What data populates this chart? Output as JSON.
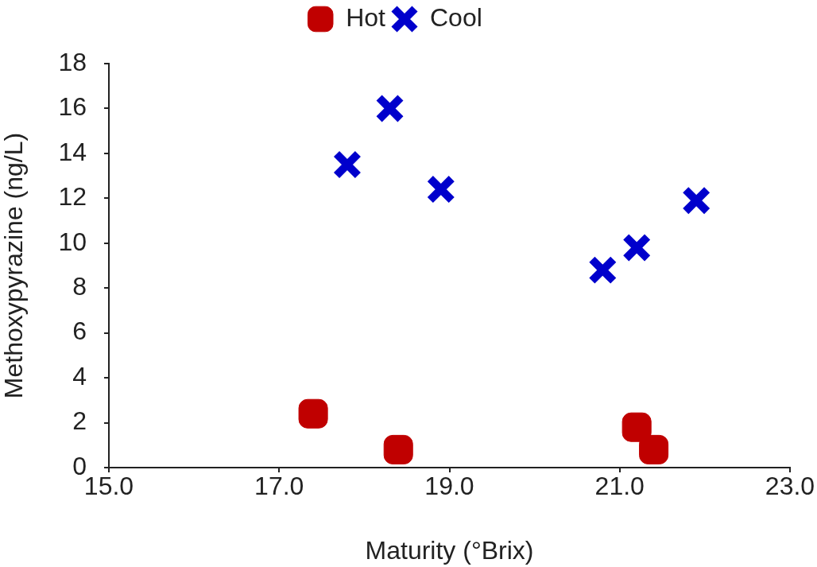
{
  "chart_data": {
    "type": "scatter",
    "xlabel": "Maturity (°Brix)",
    "ylabel": "Methoxypyrazine (ng/L)",
    "legend": "top",
    "xlim": [
      15,
      23
    ],
    "xticks": [
      {
        "value": 15,
        "label": "15.0"
      },
      {
        "value": 17,
        "label": "17.0"
      },
      {
        "value": 19,
        "label": "19.0"
      },
      {
        "value": 21,
        "label": "21.0"
      },
      {
        "value": 23,
        "label": "23.0"
      }
    ],
    "ylim": [
      0,
      18
    ],
    "yticks": [
      0,
      2,
      4,
      6,
      8,
      10,
      12,
      14,
      16,
      18
    ],
    "series": [
      {
        "name": "Hot",
        "color": "#c00000",
        "marker": "square",
        "x": [
          17.4,
          18.4,
          21.2,
          21.4
        ],
        "values": [
          2.4,
          0.8,
          1.8,
          0.8
        ]
      },
      {
        "name": "Cool",
        "color": "#0000cc",
        "marker": "cross",
        "x": [
          17.8,
          18.3,
          18.9,
          20.8,
          21.2,
          21.9
        ],
        "values": [
          13.5,
          16.0,
          12.4,
          8.8,
          9.8,
          11.9
        ]
      }
    ]
  }
}
